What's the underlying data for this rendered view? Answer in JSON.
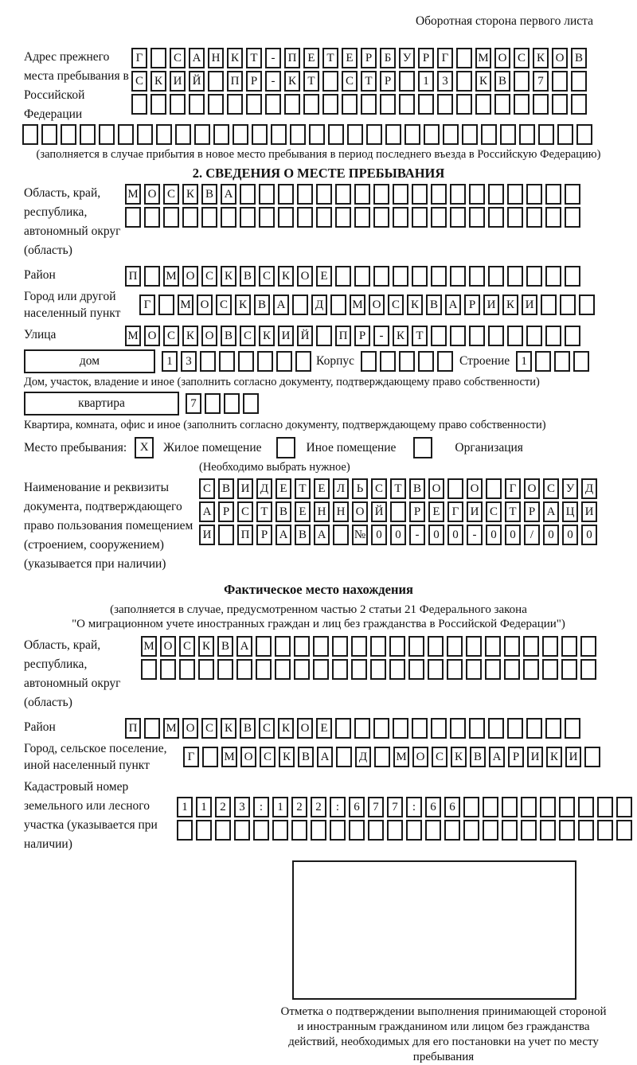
{
  "page": {
    "corner_note": "Оборотная сторона первого листа"
  },
  "prev_address": {
    "label": "Адрес прежнего места пребывания в Российской Федерации",
    "rows": [
      "Г САНКТ-ПЕТЕРБУРГ МОСКОВ",
      "СКИЙ ПР-КТ СТР 13 КВ 7  ",
      "                        ",
      "                              "
    ],
    "note": "(заполняется в случае прибытия в новое место пребывания в период последнего въезда в Российскую Федерацию)"
  },
  "section2": {
    "title": "2. СВЕДЕНИЯ О МЕСТЕ ПРЕБЫВАНИЯ",
    "region_label": "Область, край, республика, автономный округ (область)",
    "region_rows": [
      "МОСКВА                  ",
      "                        "
    ],
    "district_label": "Район",
    "district_row": "П МОСКВСКОЕ             ",
    "city_label": "Город или другой населенный пункт",
    "city_row": "Г МОСКВА Д МОСКВАРИКИ   ",
    "street_label": "Улица",
    "street_row": "МОСКОВСКИЙ ПР-КТ        ",
    "house_box_label": "дом",
    "house_cells": "13      ",
    "korpus_label": "Корпус",
    "korpus_cells": "     ",
    "stroenie_label": "Строение",
    "stroenie_cells": "1   ",
    "house_note": "Дом, участок, владение и иное (заполнить согласно документу, подтверждающему право собственности)",
    "apartment_box_label": "квартира",
    "apartment_cells": "7   ",
    "apartment_note": "Квартира, комната, офис и иное (заполнить согласно документу, подтверждающему право собственности)",
    "stay_label": "Место пребывания:",
    "stay_options": [
      {
        "checked": "X",
        "label": "Жилое помещение"
      },
      {
        "checked": "",
        "label": "Иное помещение"
      },
      {
        "checked": "",
        "label": "Организация"
      }
    ],
    "stay_note": "(Необходимо выбрать нужное)",
    "document_label": "Наименование и реквизиты документа, подтверждающего право пользования помещением (строением, сооружением) (указывается при наличии)",
    "document_rows": [
      "СВИДЕТЕЛЬСТВО О ГОСУД",
      "АРСТВЕННОЙ РЕГИСТРАЦИ",
      "И ПРАВА №00-00-00/000"
    ]
  },
  "actual_location": {
    "title": "Фактическое место нахождения",
    "note_line1": "(заполняется в случае, предусмотренном частью 2 статьи 21 Федерального закона",
    "note_line2": "\"О миграционном учете иностранных граждан и лиц без гражданства в Российской Федерации\")",
    "region_label": "Область, край, республика, автономный округ (область)",
    "region_rows": [
      "МОСКВА                  ",
      "                        "
    ],
    "district_label": "Район",
    "district_row": "П МОСКВСКОЕ             ",
    "city_label": "Город, сельское поселение, иной населенный пункт",
    "city_row": "Г МОСКВА Д МОСКВАРИКИ ",
    "cadastral_label": "Кадастровый номер земельного или лесного участка (указывается при наличии)",
    "cadastral_rows": [
      "1123:122:677:66         ",
      "                        "
    ]
  },
  "confirmation_note": "Отметка о подтверждении выполнения принимающей стороной и иностранным гражданином или лицом без гражданства действий, необходимых для его постановки на учет по месту пребывания"
}
